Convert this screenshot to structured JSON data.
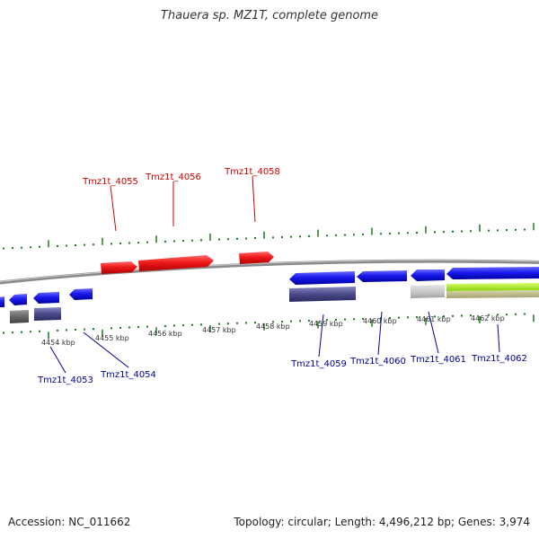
{
  "title": "Thauera sp. MZ1T, complete genome",
  "footer": {
    "accession": "Accession: NC_011662",
    "topology": "Topology: circular; Length: 4,496,212 bp; Genes: 3,974"
  },
  "tick_labels": [
    "4454 kbp",
    "4455 kbp",
    "4456 kbp",
    "4457 kbp",
    "4458 kbp",
    "4459 kbp",
    "4460 kbp",
    "4461 kbp",
    "4462 kbp"
  ],
  "forward_genes": [
    "Tmz1t_4055",
    "Tmz1t_4056",
    "Tmz1t_4058"
  ],
  "reverse_genes": [
    "Tmz1t_4053",
    "Tmz1t_4054",
    "Tmz1t_4059",
    "Tmz1t_4060",
    "Tmz1t_4061",
    "Tmz1t_4062"
  ],
  "colors": {
    "forward_gene": "#e8121a",
    "forward_label": "#cc0000",
    "reverse_gene": "#1a1af0",
    "reverse_label": "#00009a",
    "backbone": "#8a8a8a",
    "tick": "#1a7a1a",
    "cds_box": "#4a4a8a",
    "gray_box": "#666666",
    "light_gray": "#c8c8c8",
    "lime": "#9ae01a",
    "tan": "#b8b888"
  }
}
